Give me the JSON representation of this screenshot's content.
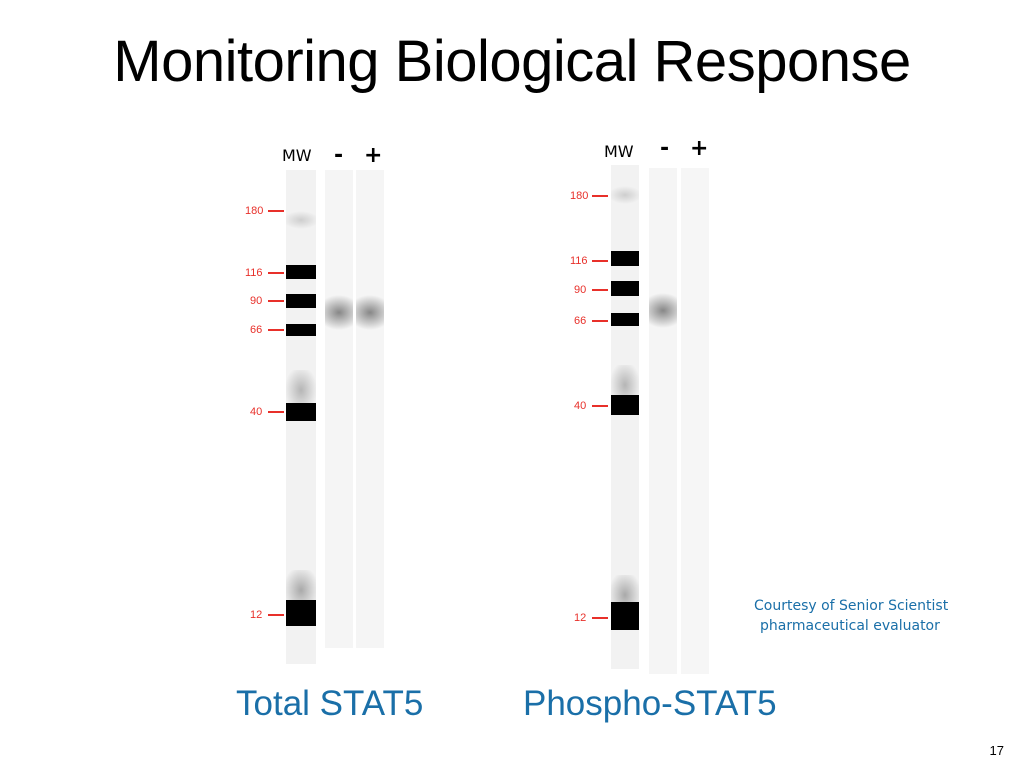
{
  "title": "Monitoring Biological Response",
  "lane_headers": {
    "mw": "MW",
    "minus": "-",
    "plus": "+"
  },
  "marker_labels": [
    "180",
    "116",
    "90",
    "66",
    "40",
    "12"
  ],
  "blots": [
    {
      "caption": "Total STAT5"
    },
    {
      "caption": "Phospho-STAT5"
    }
  ],
  "credit": {
    "line1": "Courtesy of Senior Scientist",
    "line2": "pharmaceutical evaluator"
  },
  "page_number": "17",
  "colors": {
    "title": "#000000",
    "caption": "#1a6fa8",
    "marker": "#e8302a"
  }
}
